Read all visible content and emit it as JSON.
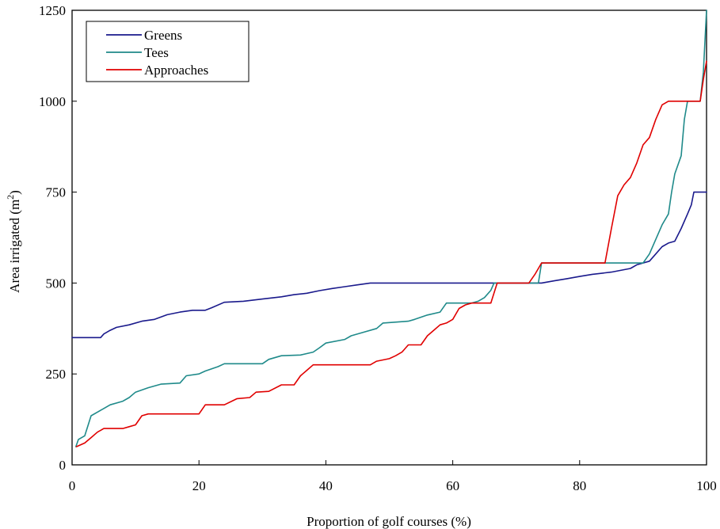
{
  "chart_data": {
    "type": "line",
    "xlabel": "Proportion of golf courses (%)",
    "ylabel_main": "Area irrigated (m",
    "ylabel_sup": "2",
    "ylabel_end": ")",
    "xlim": [
      0,
      100
    ],
    "ylim": [
      0,
      1250
    ],
    "x_ticks": [
      0,
      20,
      40,
      60,
      80,
      100
    ],
    "y_ticks": [
      0,
      250,
      500,
      750,
      1000,
      1250
    ],
    "legend_position": "top-left",
    "grid": false,
    "series": [
      {
        "name": "Greens",
        "color": "#1a1a8c",
        "points": [
          [
            0,
            350
          ],
          [
            4.5,
            350
          ],
          [
            5,
            360
          ],
          [
            6,
            370
          ],
          [
            7,
            378
          ],
          [
            9,
            385
          ],
          [
            11,
            395
          ],
          [
            13,
            400
          ],
          [
            15,
            413
          ],
          [
            17,
            420
          ],
          [
            19,
            425
          ],
          [
            21,
            425
          ],
          [
            22,
            432
          ],
          [
            24,
            447
          ],
          [
            27,
            450
          ],
          [
            30,
            456
          ],
          [
            33,
            462
          ],
          [
            35,
            468
          ],
          [
            37,
            472
          ],
          [
            39,
            479
          ],
          [
            41,
            485
          ],
          [
            43,
            490
          ],
          [
            45,
            495
          ],
          [
            47,
            500
          ],
          [
            72,
            500
          ],
          [
            74,
            500
          ],
          [
            76,
            506
          ],
          [
            78,
            512
          ],
          [
            80,
            518
          ],
          [
            82,
            524
          ],
          [
            85,
            530
          ],
          [
            88,
            540
          ],
          [
            89,
            550
          ],
          [
            91,
            560
          ],
          [
            92,
            580
          ],
          [
            93,
            600
          ],
          [
            94,
            610
          ],
          [
            95,
            615
          ],
          [
            96,
            650
          ],
          [
            97,
            690
          ],
          [
            97.6,
            715
          ],
          [
            98,
            750
          ],
          [
            100,
            750
          ]
        ]
      },
      {
        "name": "Tees",
        "color": "#1f8a8a",
        "points": [
          [
            0.6,
            50
          ],
          [
            1,
            70
          ],
          [
            2,
            80
          ],
          [
            3,
            135
          ],
          [
            4,
            145
          ],
          [
            5,
            155
          ],
          [
            6,
            165
          ],
          [
            8,
            175
          ],
          [
            9,
            185
          ],
          [
            10,
            200
          ],
          [
            12,
            212
          ],
          [
            14,
            222
          ],
          [
            17,
            225
          ],
          [
            18,
            245
          ],
          [
            20,
            250
          ],
          [
            21,
            258
          ],
          [
            23,
            270
          ],
          [
            24,
            278
          ],
          [
            30,
            278
          ],
          [
            31,
            290
          ],
          [
            33,
            300
          ],
          [
            36,
            302
          ],
          [
            38,
            310
          ],
          [
            39,
            322
          ],
          [
            40,
            335
          ],
          [
            43,
            345
          ],
          [
            44,
            355
          ],
          [
            46,
            365
          ],
          [
            48,
            375
          ],
          [
            49,
            390
          ],
          [
            53,
            395
          ],
          [
            54,
            400
          ],
          [
            56,
            412
          ],
          [
            58,
            420
          ],
          [
            59,
            445
          ],
          [
            63,
            445
          ],
          [
            64,
            450
          ],
          [
            65,
            460
          ],
          [
            66,
            480
          ],
          [
            66.5,
            500
          ],
          [
            73.5,
            500
          ],
          [
            74,
            555
          ],
          [
            90,
            555
          ],
          [
            91,
            580
          ],
          [
            92,
            620
          ],
          [
            93,
            660
          ],
          [
            94,
            690
          ],
          [
            94.5,
            750
          ],
          [
            95,
            800
          ],
          [
            96,
            850
          ],
          [
            96.5,
            950
          ],
          [
            97,
            1000
          ],
          [
            99,
            1000
          ],
          [
            99.5,
            1080
          ],
          [
            100,
            1250
          ]
        ]
      },
      {
        "name": "Approaches",
        "color": "#e00000",
        "points": [
          [
            0.7,
            50
          ],
          [
            2,
            60
          ],
          [
            3,
            75
          ],
          [
            4,
            90
          ],
          [
            5,
            100
          ],
          [
            7,
            100
          ],
          [
            8,
            100
          ],
          [
            9,
            105
          ],
          [
            10,
            110
          ],
          [
            11,
            135
          ],
          [
            12,
            140
          ],
          [
            20,
            140
          ],
          [
            21,
            165
          ],
          [
            24,
            165
          ],
          [
            26,
            182
          ],
          [
            28,
            185
          ],
          [
            29,
            200
          ],
          [
            31,
            202
          ],
          [
            33,
            220
          ],
          [
            35,
            220
          ],
          [
            36,
            245
          ],
          [
            37,
            260
          ],
          [
            38,
            275
          ],
          [
            47,
            275
          ],
          [
            48,
            285
          ],
          [
            50,
            292
          ],
          [
            51,
            300
          ],
          [
            52,
            310
          ],
          [
            53,
            330
          ],
          [
            55,
            330
          ],
          [
            56,
            355
          ],
          [
            57,
            370
          ],
          [
            58,
            385
          ],
          [
            59,
            390
          ],
          [
            60,
            400
          ],
          [
            61,
            430
          ],
          [
            62,
            440
          ],
          [
            63,
            445
          ],
          [
            66,
            445
          ],
          [
            67,
            500
          ],
          [
            72,
            500
          ],
          [
            73,
            525
          ],
          [
            74,
            555
          ],
          [
            84,
            555
          ],
          [
            85,
            650
          ],
          [
            86,
            740
          ],
          [
            87,
            770
          ],
          [
            88,
            790
          ],
          [
            89,
            830
          ],
          [
            90,
            880
          ],
          [
            91,
            900
          ],
          [
            92,
            950
          ],
          [
            93,
            990
          ],
          [
            94,
            1000
          ],
          [
            99,
            1000
          ],
          [
            99.5,
            1060
          ],
          [
            100,
            1110
          ]
        ]
      }
    ]
  }
}
